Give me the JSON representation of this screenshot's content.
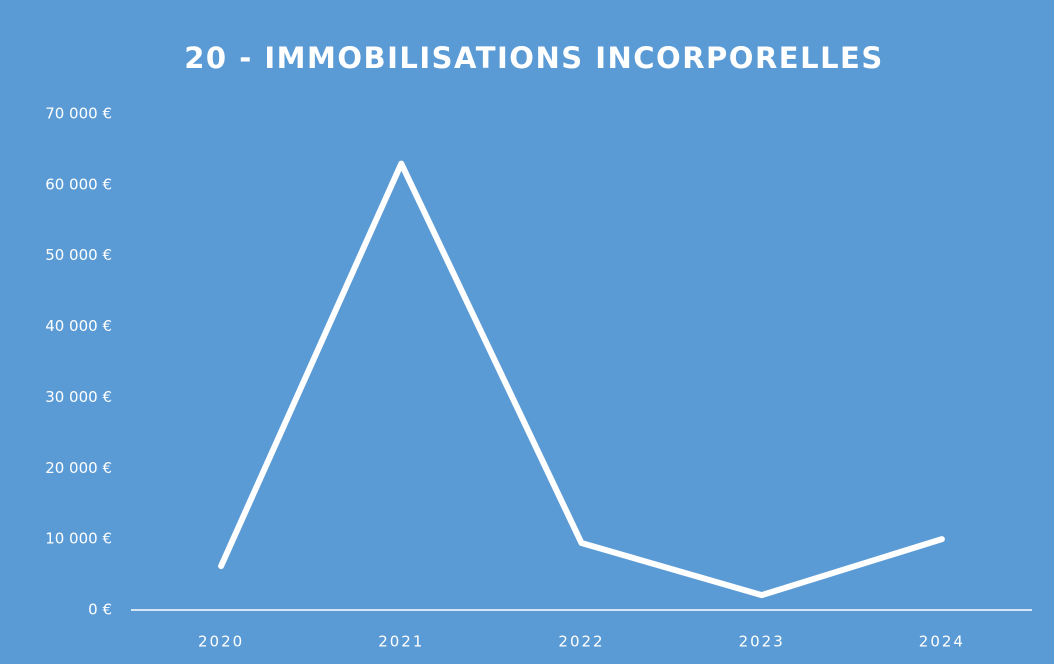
{
  "chart_data": {
    "type": "line",
    "title": "20 - IMMOBILISATIONS INCORPORELLES",
    "categories": [
      "2020",
      "2021",
      "2022",
      "2023",
      "2024"
    ],
    "series": [
      {
        "name": "20 - IMMOBILISATIONS INCORPORELLES",
        "color": "#ffffff",
        "values": [
          6200,
          63000,
          9450,
          2100,
          10000
        ]
      }
    ],
    "ylim": [
      0,
      70000
    ],
    "yticks": [
      {
        "value": 0,
        "label": "0 €"
      },
      {
        "value": 10000,
        "label": "10 000 €"
      },
      {
        "value": 20000,
        "label": "20 000 €"
      },
      {
        "value": 30000,
        "label": "30 000 €"
      },
      {
        "value": 40000,
        "label": "40 000 €"
      },
      {
        "value": 50000,
        "label": "50 000 €"
      },
      {
        "value": 60000,
        "label": "60 000 €"
      },
      {
        "value": 70000,
        "label": "70 000 €"
      }
    ],
    "background": "#5b9bd5",
    "grid": false
  }
}
